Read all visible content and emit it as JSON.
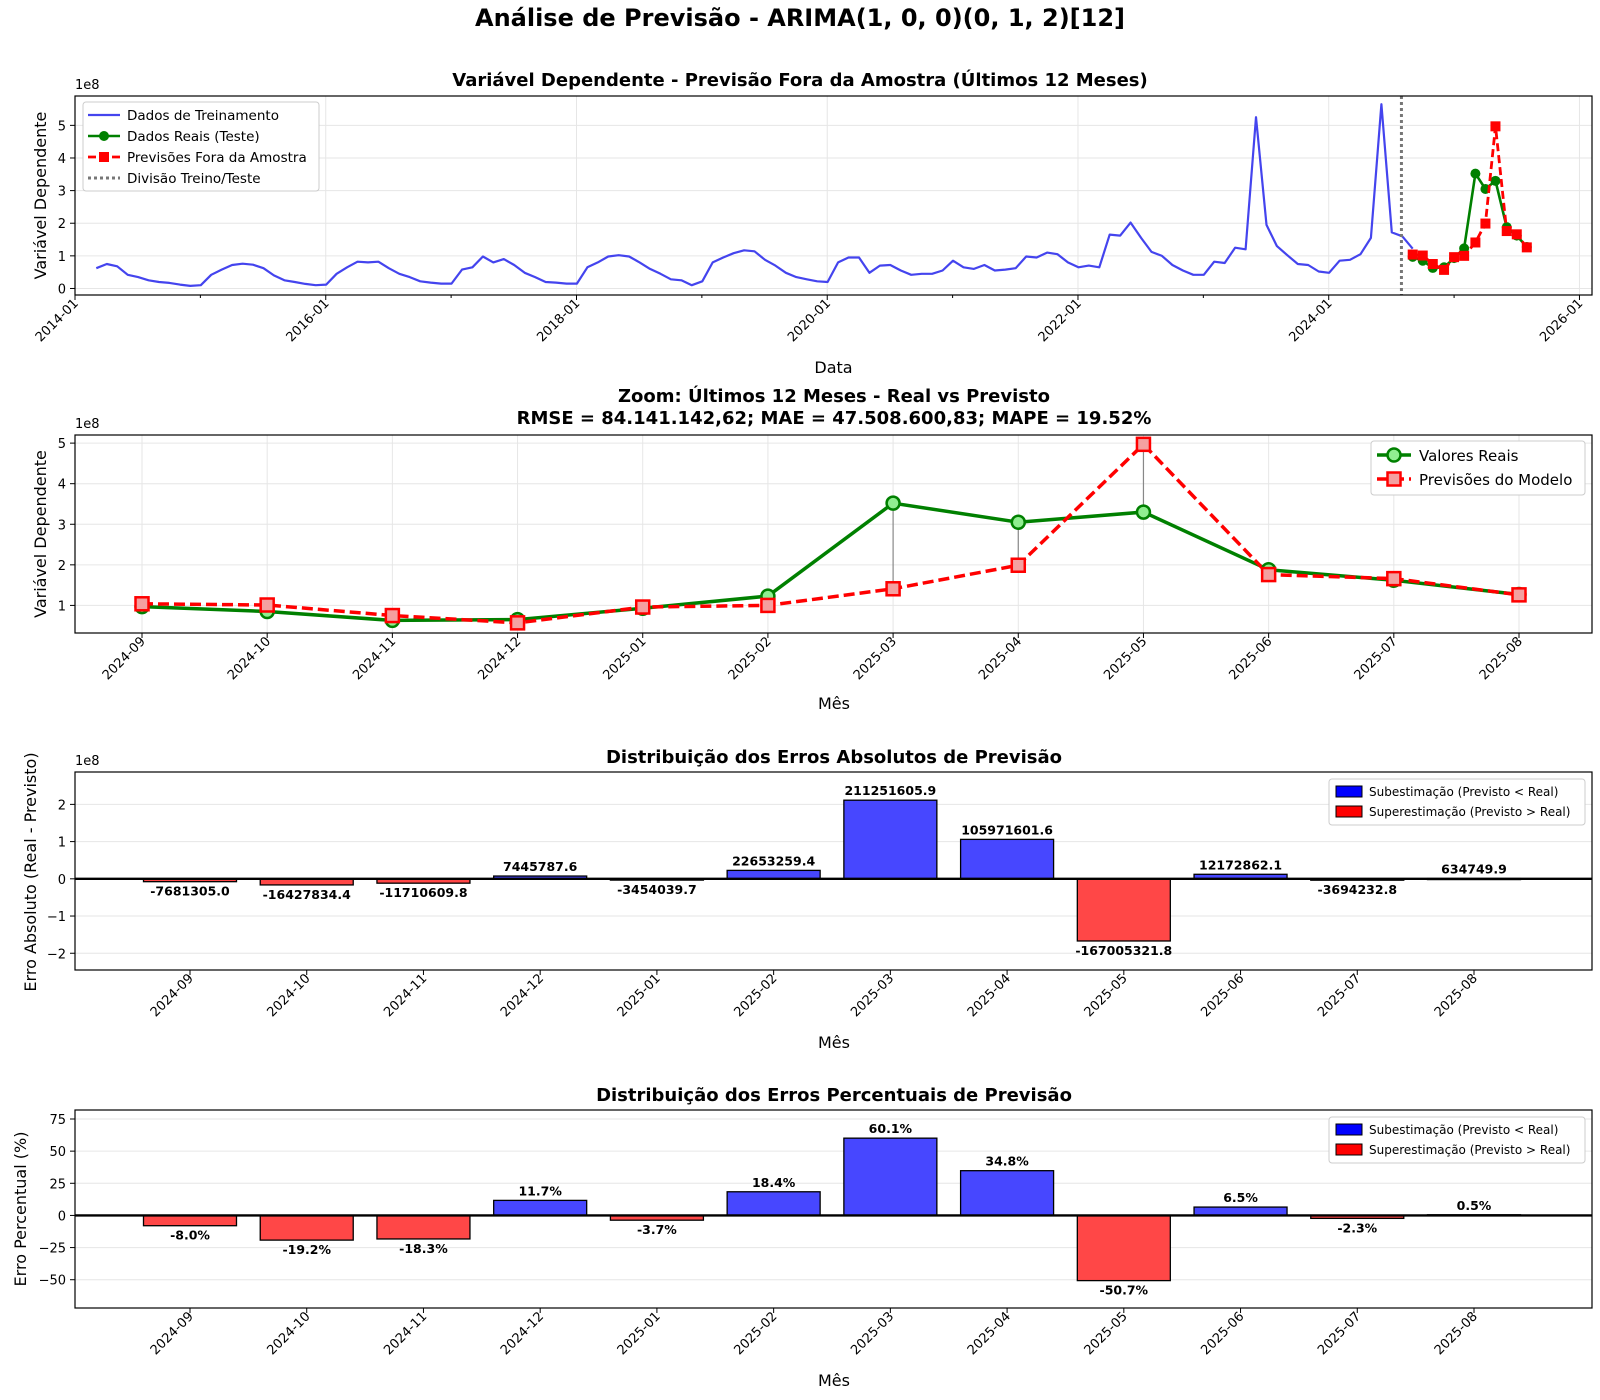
{
  "figure_title": "Análise de Previsão - ARIMA(1, 0, 0)(0, 1, 2)[12]",
  "colors": {
    "train": "#4444ee",
    "real": "#008000",
    "forecast": "#ff0000",
    "split": "#777777",
    "under": "#4747ff",
    "over": "#ff4747",
    "under_legend": "#0000ff",
    "over_legend": "#ff0000",
    "grid": "#e6e6e6"
  },
  "chart_data": [
    {
      "id": "full",
      "type": "line",
      "title": "Variável Dependente - Previsão Fora da Amostra (Últimos 12 Meses)",
      "xlabel": "Data",
      "ylabel": "Variável Dependente",
      "y_scale_label": "1e8",
      "xlim": [
        2014.0,
        2026.1
      ],
      "ylim": [
        -0.2,
        5.9
      ],
      "x_ticks": [
        2014,
        2016,
        2018,
        2020,
        2022,
        2024,
        2026
      ],
      "x_tick_labels": [
        "2014-01",
        "2016-01",
        "2018-01",
        "2020-01",
        "2022-01",
        "2024-01",
        "2026-01"
      ],
      "y_ticks": [
        0,
        1,
        2,
        3,
        4,
        5
      ],
      "y_tick_labels": [
        "0",
        "1",
        "2",
        "3",
        "4",
        "5"
      ],
      "legend_position": "top-left",
      "legend": [
        "Dados de Treinamento",
        "Dados Reais (Teste)",
        "Previsões Fora da Amostra",
        "Divisão Treino/Teste"
      ],
      "split_x": 2024.58,
      "train_start": 2014.17,
      "train_values": [
        0.62,
        0.75,
        0.68,
        0.42,
        0.35,
        0.25,
        0.2,
        0.17,
        0.12,
        0.08,
        0.1,
        0.42,
        0.58,
        0.72,
        0.76,
        0.73,
        0.62,
        0.4,
        0.25,
        0.2,
        0.14,
        0.1,
        0.12,
        0.45,
        0.65,
        0.82,
        0.8,
        0.82,
        0.62,
        0.45,
        0.35,
        0.22,
        0.18,
        0.15,
        0.15,
        0.58,
        0.65,
        0.98,
        0.8,
        0.9,
        0.72,
        0.48,
        0.35,
        0.2,
        0.18,
        0.15,
        0.15,
        0.65,
        0.8,
        0.98,
        1.02,
        0.98,
        0.8,
        0.6,
        0.45,
        0.28,
        0.25,
        0.1,
        0.22,
        0.8,
        0.95,
        1.08,
        1.17,
        1.14,
        0.88,
        0.7,
        0.48,
        0.35,
        0.28,
        0.22,
        0.2,
        0.8,
        0.95,
        0.95,
        0.48,
        0.7,
        0.72,
        0.55,
        0.42,
        0.45,
        0.45,
        0.55,
        0.85,
        0.65,
        0.6,
        0.72,
        0.55,
        0.58,
        0.62,
        0.98,
        0.95,
        1.1,
        1.05,
        0.8,
        0.65,
        0.7,
        0.65,
        1.65,
        1.62,
        2.02,
        1.55,
        1.12,
        1.0,
        0.72,
        0.55,
        0.42,
        0.42,
        0.82,
        0.78,
        1.25,
        1.2,
        5.25,
        1.95,
        1.3,
        1.02,
        0.75,
        0.72,
        0.52,
        0.48,
        0.85,
        0.88,
        1.05,
        1.55,
        5.65,
        1.72,
        1.6,
        1.22
      ],
      "test_x": [
        2024.67,
        2024.75,
        2024.83,
        2024.92,
        2025.0,
        2025.08,
        2025.17,
        2025.25,
        2025.33,
        2025.42,
        2025.5,
        2025.58
      ],
      "test_values": [
        0.97,
        0.85,
        0.63,
        0.65,
        0.93,
        1.23,
        3.52,
        3.05,
        3.3,
        1.88,
        1.62,
        1.27
      ],
      "forecast_values": [
        1.04,
        1.01,
        0.75,
        0.57,
        0.96,
        1.0,
        1.41,
        1.99,
        4.97,
        1.76,
        1.66,
        1.26
      ]
    },
    {
      "id": "zoom",
      "type": "line",
      "title": "Zoom: Últimos 12 Meses - Real vs Previsto",
      "subtitle": "RMSE = 84.141.142,62; MAE = 47.508.600,83; MAPE = 19.52%",
      "xlabel": "Mês",
      "ylabel": "Variável Dependente",
      "y_scale_label": "1e8",
      "ylim": [
        0.32,
        5.2
      ],
      "y_ticks": [
        1,
        2,
        3,
        4,
        5
      ],
      "y_tick_labels": [
        "1",
        "2",
        "3",
        "4",
        "5"
      ],
      "legend_position": "top-right",
      "legend": [
        "Valores Reais",
        "Previsões do Modelo"
      ],
      "categories": [
        "2024-09",
        "2024-10",
        "2024-11",
        "2024-12",
        "2025-01",
        "2025-02",
        "2025-03",
        "2025-04",
        "2025-05",
        "2025-06",
        "2025-07",
        "2025-08"
      ],
      "series": [
        {
          "name": "Valores Reais",
          "values": [
            0.97,
            0.85,
            0.63,
            0.65,
            0.93,
            1.23,
            3.52,
            3.05,
            3.3,
            1.88,
            1.62,
            1.27
          ]
        },
        {
          "name": "Previsões do Modelo",
          "values": [
            1.04,
            1.01,
            0.75,
            0.57,
            0.96,
            1.0,
            1.41,
            1.99,
            4.97,
            1.76,
            1.66,
            1.26
          ]
        }
      ]
    },
    {
      "id": "abs",
      "type": "bar",
      "title": "Distribuição dos Erros Absolutos de Previsão",
      "xlabel": "Mês",
      "ylabel": "Erro Absoluto (Real - Previsto)",
      "y_scale_label": "1e8",
      "ylim": [
        -2.45,
        2.87
      ],
      "y_ticks": [
        -2,
        -1,
        0,
        1,
        2
      ],
      "y_tick_labels": [
        "−2",
        "−1",
        "0",
        "1",
        "2"
      ],
      "legend_position": "top-right",
      "legend": [
        "Subestimação (Previsto < Real)",
        "Superestimação (Previsto > Real)"
      ],
      "categories": [
        "2024-09",
        "2024-10",
        "2024-11",
        "2024-12",
        "2025-01",
        "2025-02",
        "2025-03",
        "2025-04",
        "2025-05",
        "2025-06",
        "2025-07",
        "2025-08"
      ],
      "values": [
        -0.07681305,
        -0.164278344,
        -0.117106098,
        0.074457876,
        -0.034540397,
        0.226532594,
        2.112516059,
        1.059716016,
        -1.670053218,
        0.121728621,
        -0.036942328,
        0.006347499
      ],
      "labels": [
        "-7681305.0",
        "-16427834.4",
        "-11710609.8",
        "7445787.6",
        "-3454039.7",
        "22653259.4",
        "211251605.9",
        "105971601.6",
        "-167005321.8",
        "12172862.1",
        "-3694232.8",
        "634749.9"
      ]
    },
    {
      "id": "pct",
      "type": "bar",
      "title": "Distribuição dos Erros Percentuais de Previsão",
      "xlabel": "Mês",
      "ylabel": "Erro Percentual (%)",
      "ylim": [
        -72,
        82
      ],
      "y_ticks": [
        -50,
        -25,
        0,
        25,
        50,
        75
      ],
      "y_tick_labels": [
        "−50",
        "−25",
        "0",
        "25",
        "50",
        "75"
      ],
      "legend_position": "top-right",
      "legend": [
        "Subestimação (Previsto < Real)",
        "Superestimação (Previsto > Real)"
      ],
      "categories": [
        "2024-09",
        "2024-10",
        "2024-11",
        "2024-12",
        "2025-01",
        "2025-02",
        "2025-03",
        "2025-04",
        "2025-05",
        "2025-06",
        "2025-07",
        "2025-08"
      ],
      "values": [
        -8.0,
        -19.2,
        -18.3,
        11.7,
        -3.7,
        18.4,
        60.1,
        34.8,
        -50.7,
        6.5,
        -2.3,
        0.5
      ],
      "labels": [
        "-8.0%",
        "-19.2%",
        "-18.3%",
        "11.7%",
        "-3.7%",
        "18.4%",
        "60.1%",
        "34.8%",
        "-50.7%",
        "6.5%",
        "-2.3%",
        "0.5%"
      ]
    }
  ]
}
